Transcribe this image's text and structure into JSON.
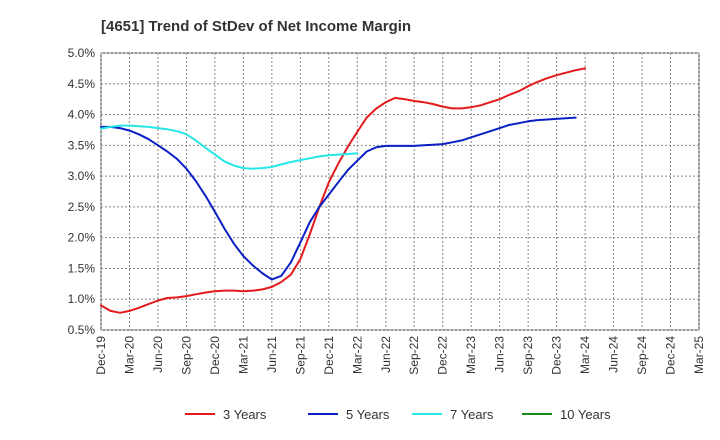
{
  "chart_data": {
    "type": "line",
    "title": "[4651]  Trend of StDev of Net Income Margin",
    "xlabel": "",
    "ylabel": "",
    "x_labels": [
      "Dec-19",
      "Mar-20",
      "Jun-20",
      "Sep-20",
      "Dec-20",
      "Mar-21",
      "Jun-21",
      "Sep-21",
      "Dec-21",
      "Mar-22",
      "Jun-22",
      "Sep-22",
      "Dec-22",
      "Mar-23",
      "Jun-23",
      "Sep-23",
      "Dec-23",
      "Mar-24",
      "Jun-24",
      "Sep-24",
      "Dec-24",
      "Mar-25"
    ],
    "y_ticks": [
      "0.5%",
      "1.0%",
      "1.5%",
      "2.0%",
      "2.5%",
      "3.0%",
      "3.5%",
      "4.0%",
      "4.5%",
      "5.0%"
    ],
    "ylim": [
      0.5,
      5.0
    ],
    "grid": true,
    "legend_position": "bottom",
    "series": [
      {
        "name": "3 Years",
        "color": "#e31a1c",
        "values": [
          [
            0,
            0.9
          ],
          [
            0.33,
            0.81
          ],
          [
            0.67,
            0.78
          ],
          [
            1,
            0.81
          ],
          [
            1.33,
            0.86
          ],
          [
            1.67,
            0.92
          ],
          [
            2,
            0.98
          ],
          [
            2.33,
            1.02
          ],
          [
            2.67,
            1.03
          ],
          [
            3,
            1.05
          ],
          [
            3.33,
            1.08
          ],
          [
            3.67,
            1.11
          ],
          [
            4,
            1.13
          ],
          [
            4.33,
            1.14
          ],
          [
            4.67,
            1.14
          ],
          [
            5,
            1.13
          ],
          [
            5.33,
            1.14
          ],
          [
            5.67,
            1.16
          ],
          [
            6,
            1.2
          ],
          [
            6.33,
            1.28
          ],
          [
            6.67,
            1.4
          ],
          [
            7,
            1.65
          ],
          [
            7.33,
            2.05
          ],
          [
            7.67,
            2.5
          ],
          [
            8,
            2.9
          ],
          [
            8.33,
            3.2
          ],
          [
            8.67,
            3.48
          ],
          [
            9,
            3.72
          ],
          [
            9.33,
            3.95
          ],
          [
            9.67,
            4.1
          ],
          [
            10,
            4.2
          ],
          [
            10.33,
            4.27
          ],
          [
            10.67,
            4.25
          ],
          [
            11,
            4.22
          ],
          [
            11.33,
            4.2
          ],
          [
            11.67,
            4.17
          ],
          [
            12,
            4.13
          ],
          [
            12.33,
            4.1
          ],
          [
            12.67,
            4.1
          ],
          [
            13,
            4.12
          ],
          [
            13.33,
            4.15
          ],
          [
            13.67,
            4.2
          ],
          [
            14,
            4.25
          ],
          [
            14.33,
            4.32
          ],
          [
            14.67,
            4.38
          ],
          [
            15,
            4.46
          ],
          [
            15.33,
            4.53
          ],
          [
            15.67,
            4.59
          ],
          [
            16,
            4.64
          ],
          [
            16.33,
            4.68
          ],
          [
            16.67,
            4.72
          ],
          [
            17,
            4.75
          ]
        ]
      },
      {
        "name": "5 Years",
        "color": "#0a1fc4",
        "values": [
          [
            0,
            3.8
          ],
          [
            0.33,
            3.8
          ],
          [
            0.67,
            3.78
          ],
          [
            1,
            3.74
          ],
          [
            1.33,
            3.68
          ],
          [
            1.67,
            3.6
          ],
          [
            2,
            3.5
          ],
          [
            2.33,
            3.4
          ],
          [
            2.67,
            3.28
          ],
          [
            3,
            3.12
          ],
          [
            3.33,
            2.92
          ],
          [
            3.67,
            2.68
          ],
          [
            4,
            2.42
          ],
          [
            4.33,
            2.15
          ],
          [
            4.67,
            1.9
          ],
          [
            5,
            1.7
          ],
          [
            5.33,
            1.55
          ],
          [
            5.67,
            1.42
          ],
          [
            6,
            1.32
          ],
          [
            6.33,
            1.38
          ],
          [
            6.67,
            1.6
          ],
          [
            7,
            1.92
          ],
          [
            7.33,
            2.25
          ],
          [
            7.67,
            2.5
          ],
          [
            8,
            2.7
          ],
          [
            8.33,
            2.9
          ],
          [
            8.67,
            3.1
          ],
          [
            9,
            3.25
          ],
          [
            9.33,
            3.4
          ],
          [
            9.67,
            3.47
          ],
          [
            10,
            3.49
          ],
          [
            10.33,
            3.49
          ],
          [
            10.67,
            3.49
          ],
          [
            11,
            3.49
          ],
          [
            11.33,
            3.5
          ],
          [
            11.67,
            3.51
          ],
          [
            12,
            3.52
          ],
          [
            12.33,
            3.55
          ],
          [
            12.67,
            3.58
          ],
          [
            13,
            3.63
          ],
          [
            13.33,
            3.68
          ],
          [
            13.67,
            3.73
          ],
          [
            14,
            3.78
          ],
          [
            14.33,
            3.83
          ],
          [
            14.67,
            3.86
          ],
          [
            15,
            3.89
          ],
          [
            15.33,
            3.91
          ],
          [
            15.67,
            3.92
          ],
          [
            16,
            3.93
          ],
          [
            16.33,
            3.94
          ],
          [
            16.67,
            3.95
          ]
        ]
      },
      {
        "name": "7 Years",
        "color": "#27e6e6",
        "values": [
          [
            0,
            3.77
          ],
          [
            0.33,
            3.8
          ],
          [
            0.67,
            3.82
          ],
          [
            1,
            3.82
          ],
          [
            1.33,
            3.81
          ],
          [
            1.67,
            3.8
          ],
          [
            2,
            3.78
          ],
          [
            2.33,
            3.76
          ],
          [
            2.67,
            3.73
          ],
          [
            3,
            3.68
          ],
          [
            3.33,
            3.58
          ],
          [
            3.67,
            3.46
          ],
          [
            4,
            3.35
          ],
          [
            4.33,
            3.24
          ],
          [
            4.67,
            3.17
          ],
          [
            5,
            3.13
          ],
          [
            5.33,
            3.12
          ],
          [
            5.67,
            3.13
          ],
          [
            6,
            3.15
          ],
          [
            6.33,
            3.19
          ],
          [
            6.67,
            3.23
          ],
          [
            7,
            3.26
          ],
          [
            7.33,
            3.29
          ],
          [
            7.67,
            3.32
          ],
          [
            8,
            3.34
          ],
          [
            8.33,
            3.35
          ],
          [
            8.67,
            3.36
          ],
          [
            9,
            3.37
          ]
        ]
      },
      {
        "name": "10 Years",
        "color": "#1a8a1a",
        "values": []
      }
    ]
  }
}
